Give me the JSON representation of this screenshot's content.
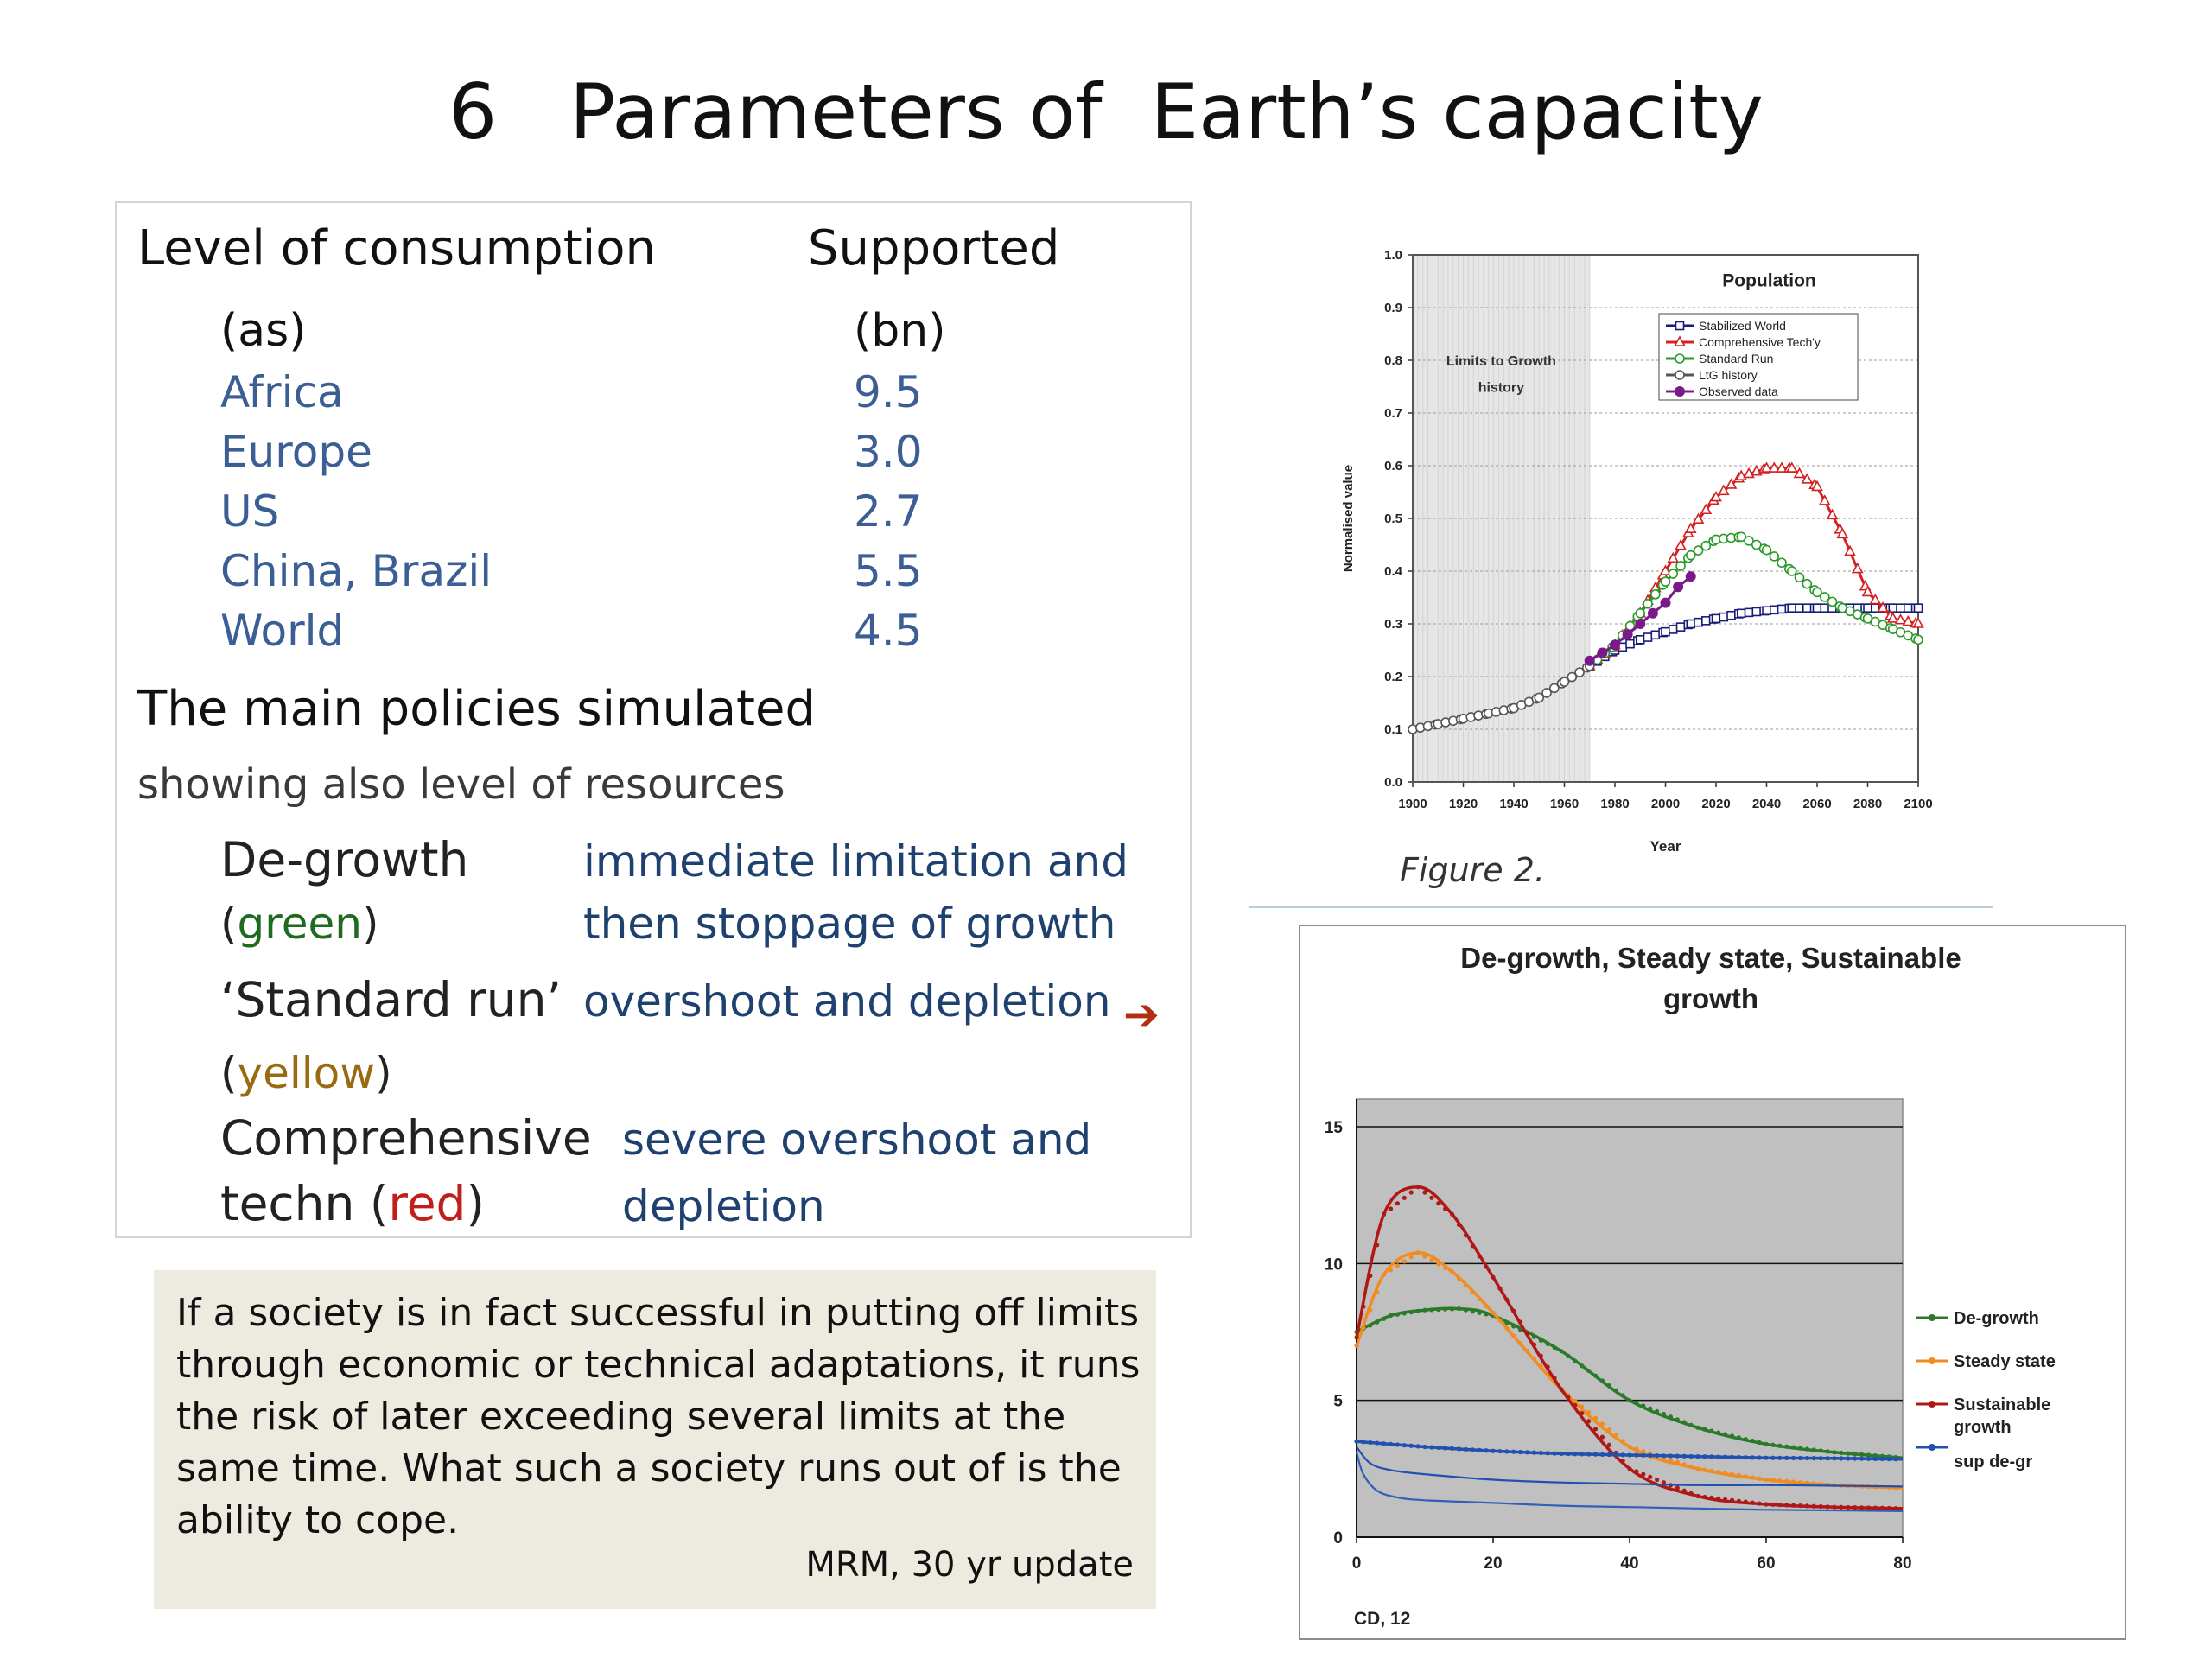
{
  "title": "6   Parameters of  Earth’s capacity",
  "table": {
    "col1_header": "Level of consumption",
    "col2_header": "Supported",
    "col1_sub": "(as)",
    "col2_sub": "(bn)",
    "rows": [
      {
        "name": "Africa",
        "value": "9.5"
      },
      {
        "name": "Europe",
        "value": "3.0"
      },
      {
        "name": "US",
        "value": "2.7"
      },
      {
        "name": "China, Brazil",
        "value": "5.5"
      },
      {
        "name": "World",
        "value": "4.5"
      }
    ]
  },
  "policies": {
    "heading": "The main policies simulated",
    "subheading": "showing also level of resources",
    "degrowth": {
      "name": "De-growth",
      "open": "(",
      "color_word": "green",
      "close": ")",
      "desc1": "immediate limitation and",
      "desc2": "then stoppage of growth"
    },
    "standard": {
      "name": "‘Standard run’",
      "open": "(",
      "color_word": "yellow",
      "close": ")",
      "desc1": "overshoot and depletion"
    },
    "comprehensive": {
      "name1": "Comprehensive",
      "name2": " techn (",
      "color_word": "red",
      "close": ")",
      "desc1": "severe overshoot and",
      "desc2": "depletion"
    },
    "arrow": "➔"
  },
  "quote": {
    "text": "If a society is in fact successful in putting off limits through economic or technical adaptations, it runs the risk of later exceeding several limits at the same time. What such a society runs out of is the ability to cope.",
    "source": "MRM, 30 yr update"
  },
  "figure1": {
    "caption": "Figure 2.",
    "chart_data": {
      "type": "line",
      "title": "Population",
      "xlabel": "Year",
      "ylabel": "Normalised value",
      "xlim": [
        1900,
        2100
      ],
      "ylim": [
        0,
        1.0
      ],
      "x_ticks": [
        "1900",
        "1920",
        "1940",
        "1960",
        "1980",
        "2000",
        "2020",
        "2040",
        "2060",
        "2080",
        "2100"
      ],
      "y_ticks": [
        "0.0",
        "0.1",
        "0.2",
        "0.3",
        "0.4",
        "0.5",
        "0.6",
        "0.7",
        "0.8",
        "0.9",
        "1.0"
      ],
      "shaded_region_label": [
        "Limits to Growth",
        "history"
      ],
      "shaded_region": [
        1900,
        1970
      ],
      "legend": [
        "Stabilized World",
        "Comprehensive Tech'y",
        "Standard Run",
        "LtG history",
        "Observed data"
      ],
      "grid": true,
      "series": [
        {
          "name": "Stabilized World",
          "color": "#1a1a7a",
          "marker": "square",
          "points": [
            [
              1970,
              0.22
            ],
            [
              1980,
              0.25
            ],
            [
              1990,
              0.27
            ],
            [
              2000,
              0.285
            ],
            [
              2010,
              0.3
            ],
            [
              2020,
              0.31
            ],
            [
              2030,
              0.32
            ],
            [
              2040,
              0.325
            ],
            [
              2050,
              0.33
            ],
            [
              2060,
              0.33
            ],
            [
              2070,
              0.33
            ],
            [
              2080,
              0.33
            ],
            [
              2090,
              0.33
            ],
            [
              2100,
              0.33
            ]
          ]
        },
        {
          "name": "Comprehensive Tech'y",
          "color": "#d42020",
          "marker": "triangle",
          "points": [
            [
              1970,
              0.22
            ],
            [
              1980,
              0.26
            ],
            [
              1990,
              0.32
            ],
            [
              2000,
              0.4
            ],
            [
              2010,
              0.48
            ],
            [
              2020,
              0.54
            ],
            [
              2030,
              0.58
            ],
            [
              2040,
              0.595
            ],
            [
              2050,
              0.595
            ],
            [
              2060,
              0.56
            ],
            [
              2070,
              0.47
            ],
            [
              2080,
              0.36
            ],
            [
              2090,
              0.31
            ],
            [
              2100,
              0.3
            ]
          ]
        },
        {
          "name": "Standard Run",
          "color": "#2a9a2a",
          "marker": "circle",
          "points": [
            [
              1970,
              0.22
            ],
            [
              1980,
              0.26
            ],
            [
              1990,
              0.32
            ],
            [
              2000,
              0.38
            ],
            [
              2010,
              0.43
            ],
            [
              2020,
              0.46
            ],
            [
              2030,
              0.465
            ],
            [
              2040,
              0.44
            ],
            [
              2050,
              0.4
            ],
            [
              2060,
              0.36
            ],
            [
              2070,
              0.33
            ],
            [
              2080,
              0.31
            ],
            [
              2090,
              0.29
            ],
            [
              2100,
              0.27
            ]
          ]
        },
        {
          "name": "LtG history",
          "color": "#555555",
          "marker": "circle-open",
          "points": [
            [
              1900,
              0.1
            ],
            [
              1910,
              0.11
            ],
            [
              1920,
              0.12
            ],
            [
              1930,
              0.13
            ],
            [
              1940,
              0.14
            ],
            [
              1950,
              0.16
            ],
            [
              1960,
              0.19
            ],
            [
              1970,
              0.22
            ]
          ]
        },
        {
          "name": "Observed data",
          "color": "#7a1a8a",
          "marker": "dot",
          "points": [
            [
              1970,
              0.23
            ],
            [
              1975,
              0.245
            ],
            [
              1980,
              0.26
            ],
            [
              1985,
              0.28
            ],
            [
              1990,
              0.3
            ],
            [
              1995,
              0.32
            ],
            [
              2000,
              0.34
            ],
            [
              2005,
              0.37
            ],
            [
              2010,
              0.39
            ]
          ]
        }
      ]
    }
  },
  "figure2": {
    "footer": "CD, 12",
    "chart_data": {
      "type": "line",
      "title": "De-growth, Steady state, Sustainable growth",
      "xlim": [
        0,
        80
      ],
      "ylim": [
        0,
        15
      ],
      "x_ticks": [
        "0",
        "20",
        "40",
        "60",
        "80"
      ],
      "y_ticks": [
        "0",
        "5",
        "10",
        "15"
      ],
      "legend": [
        "De-growth",
        "Steady state",
        "Sustainable growth",
        "sup de-gr"
      ],
      "legend_position": "right",
      "grid": true,
      "series": [
        {
          "name": "De-growth",
          "color": "#2a7a2a",
          "points": [
            [
              0,
              7.5
            ],
            [
              5,
              8.1
            ],
            [
              10,
              8.3
            ],
            [
              15,
              8.35
            ],
            [
              20,
              8.1
            ],
            [
              30,
              6.8
            ],
            [
              40,
              5.0
            ],
            [
              50,
              4.0
            ],
            [
              60,
              3.4
            ],
            [
              70,
              3.1
            ],
            [
              80,
              2.9
            ]
          ]
        },
        {
          "name": "Steady state",
          "color": "#f08c20",
          "points": [
            [
              0,
              7.0
            ],
            [
              4,
              9.6
            ],
            [
              9,
              10.4
            ],
            [
              14,
              9.7
            ],
            [
              20,
              8.2
            ],
            [
              30,
              5.4
            ],
            [
              40,
              3.3
            ],
            [
              50,
              2.5
            ],
            [
              60,
              2.1
            ],
            [
              70,
              1.9
            ],
            [
              80,
              1.8
            ]
          ]
        },
        {
          "name": "Sustainable growth",
          "color": "#b01818",
          "points": [
            [
              0,
              7.3
            ],
            [
              4,
              11.8
            ],
            [
              9,
              12.8
            ],
            [
              14,
              11.8
            ],
            [
              20,
              9.5
            ],
            [
              30,
              5.4
            ],
            [
              40,
              2.5
            ],
            [
              50,
              1.5
            ],
            [
              60,
              1.2
            ],
            [
              70,
              1.1
            ],
            [
              80,
              1.05
            ]
          ]
        },
        {
          "name": "sup de-gr",
          "color": "#2050b0",
          "points": [
            [
              0,
              3.5
            ],
            [
              10,
              3.3
            ],
            [
              20,
              3.15
            ],
            [
              30,
              3.05
            ],
            [
              40,
              3.0
            ],
            [
              50,
              2.95
            ],
            [
              60,
              2.9
            ],
            [
              70,
              2.88
            ],
            [
              80,
              2.85
            ]
          ]
        },
        {
          "name": "",
          "color": "#2050b0",
          "points": [
            [
              0,
              3.3
            ],
            [
              2,
              2.7
            ],
            [
              5,
              2.45
            ],
            [
              10,
              2.3
            ],
            [
              20,
              2.1
            ],
            [
              30,
              2.0
            ],
            [
              40,
              1.95
            ],
            [
              50,
              1.9
            ],
            [
              60,
              1.9
            ],
            [
              70,
              1.88
            ],
            [
              80,
              1.85
            ]
          ]
        },
        {
          "name": "",
          "color": "#3060b8",
          "points": [
            [
              0,
              3.1
            ],
            [
              1,
              2.3
            ],
            [
              3,
              1.7
            ],
            [
              6,
              1.45
            ],
            [
              10,
              1.35
            ],
            [
              20,
              1.25
            ],
            [
              30,
              1.15
            ],
            [
              40,
              1.1
            ],
            [
              50,
              1.05
            ],
            [
              60,
              1.0
            ],
            [
              70,
              0.98
            ],
            [
              80,
              0.95
            ]
          ]
        }
      ]
    }
  }
}
